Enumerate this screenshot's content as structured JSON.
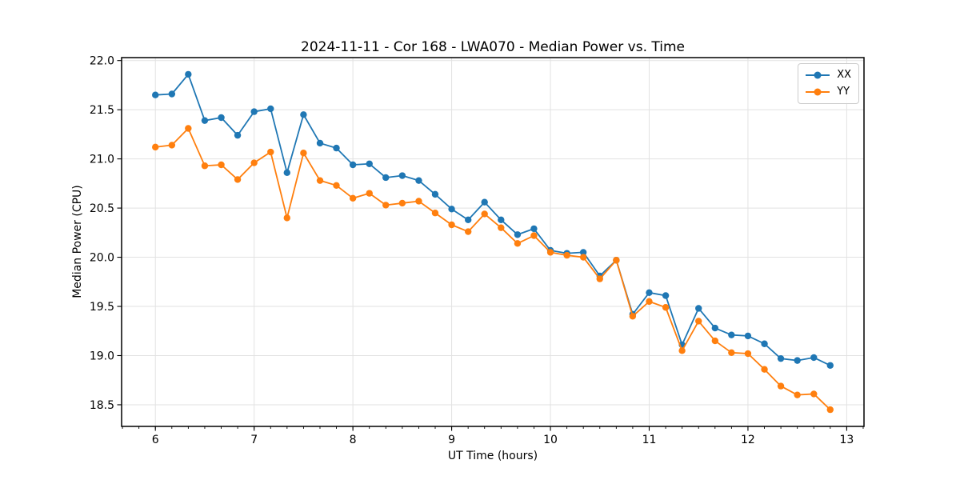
{
  "chart_data": {
    "type": "line",
    "title": "2024-11-11 - Cor 168 - LWA070 - Median Power vs. Time",
    "xlabel": "UT Time (hours)",
    "ylabel": "Median Power (CPU)",
    "xlim": [
      5.658,
      13.175
    ],
    "ylim": [
      18.28,
      22.03
    ],
    "x_ticks": [
      6,
      7,
      8,
      9,
      10,
      11,
      12,
      13
    ],
    "x_tick_labels": [
      "6",
      "7",
      "8",
      "9",
      "10",
      "11",
      "12",
      "13"
    ],
    "x_minor_step": 0.166667,
    "y_ticks": [
      18.5,
      19.0,
      19.5,
      20.0,
      20.5,
      21.0,
      21.5,
      22.0
    ],
    "y_tick_labels": [
      "18.5",
      "19.0",
      "19.5",
      "20.0",
      "20.5",
      "21.0",
      "21.5",
      "22.0"
    ],
    "grid": true,
    "grid_color": "#e2e2e2",
    "legend_position": "upper right",
    "x": [
      6.0,
      6.167,
      6.333,
      6.5,
      6.667,
      6.833,
      7.0,
      7.167,
      7.333,
      7.5,
      7.667,
      7.833,
      8.0,
      8.167,
      8.333,
      8.5,
      8.667,
      8.833,
      9.0,
      9.167,
      9.333,
      9.5,
      9.667,
      9.833,
      10.0,
      10.167,
      10.333,
      10.5,
      10.667,
      10.833,
      11.0,
      11.167,
      11.333,
      11.5,
      11.667,
      11.833,
      12.0,
      12.167,
      12.333,
      12.5,
      12.667,
      12.833
    ],
    "series": [
      {
        "name": "XX",
        "color": "#1f77b4",
        "values": [
          21.65,
          21.66,
          21.86,
          21.39,
          21.42,
          21.24,
          21.48,
          21.51,
          20.86,
          21.45,
          21.16,
          21.11,
          20.94,
          20.95,
          20.81,
          20.83,
          20.78,
          20.64,
          20.49,
          20.38,
          20.56,
          20.38,
          20.23,
          20.29,
          20.07,
          20.04,
          20.05,
          19.81,
          19.97,
          19.42,
          19.64,
          19.61,
          19.11,
          19.48,
          19.28,
          19.21,
          19.2,
          19.12,
          18.97,
          18.95,
          18.98,
          18.9
        ]
      },
      {
        "name": "YY",
        "color": "#ff7f0e",
        "values": [
          21.12,
          21.14,
          21.31,
          20.93,
          20.94,
          20.79,
          20.96,
          21.07,
          20.4,
          21.06,
          20.78,
          20.73,
          20.6,
          20.65,
          20.53,
          20.55,
          20.57,
          20.45,
          20.33,
          20.26,
          20.44,
          20.3,
          20.14,
          20.22,
          20.05,
          20.02,
          20.0,
          19.78,
          19.97,
          19.4,
          19.55,
          19.49,
          19.05,
          19.35,
          19.15,
          19.03,
          19.02,
          18.86,
          18.69,
          18.6,
          18.61,
          18.45
        ]
      }
    ]
  }
}
